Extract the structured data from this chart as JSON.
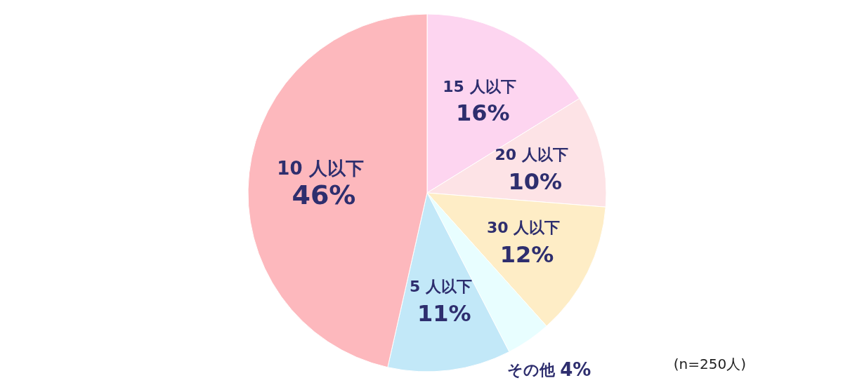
{
  "chart_data": {
    "type": "pie",
    "categories": [
      "15 人以下",
      "20 人以下",
      "30 人以下",
      "その他",
      "5 人以下",
      "10 人以下"
    ],
    "values": [
      16,
      10,
      12,
      4,
      11,
      46
    ],
    "value_labels": [
      "16%",
      "10%",
      "12%",
      "4%",
      "11%",
      "46%"
    ],
    "colors": [
      "#fdd5f0",
      "#fde3e6",
      "#feedc6",
      "#e8feff",
      "#c2e8f8",
      "#fdb8bd"
    ],
    "annotations": [
      "(n=250人)"
    ]
  }
}
